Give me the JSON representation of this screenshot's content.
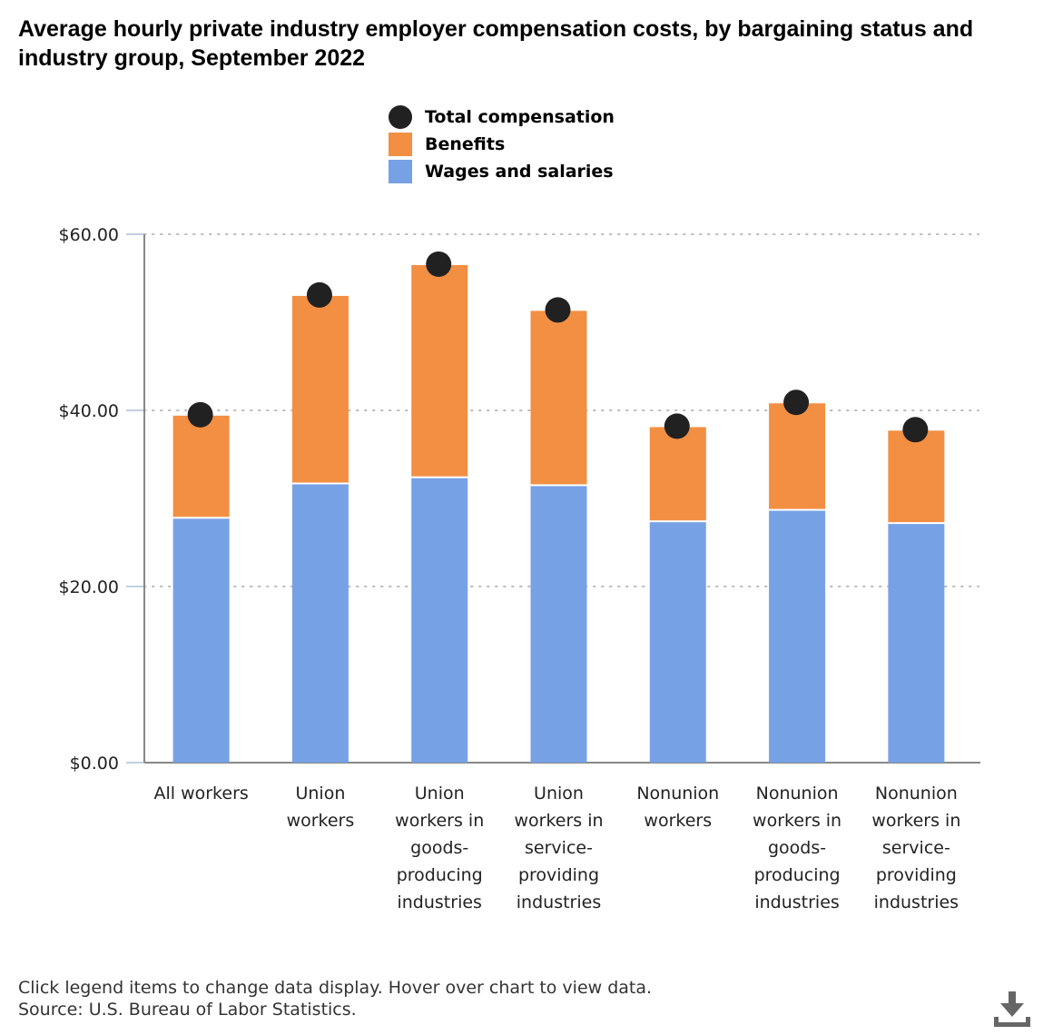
{
  "title": "Average hourly private industry employer compensation costs, by bargaining status and industry group, September 2022",
  "legend": [
    {
      "label": "Total compensation",
      "symbol": "circle",
      "color": "#212121"
    },
    {
      "label": "Benefits",
      "symbol": "square",
      "color": "#f28f43"
    },
    {
      "label": "Wages and salaries",
      "symbol": "square",
      "color": "#77a1e5"
    }
  ],
  "footer": {
    "line1": "Click legend items to change data display. Hover over chart to view data.",
    "line2": "Source: U.S. Bureau of Labor Statistics."
  },
  "download_icon": "download-icon",
  "chart_data": {
    "type": "bar",
    "stacked": true,
    "title": "Average hourly private industry employer compensation costs, by bargaining status and industry group, September 2022",
    "xlabel": "",
    "ylabel": "",
    "ylim": [
      0,
      60
    ],
    "yticks": [
      0,
      20,
      40,
      60
    ],
    "ytick_labels": [
      "$0.00",
      "$20.00",
      "$40.00",
      "$60.00"
    ],
    "grid": true,
    "legend_position": "top",
    "categories": [
      [
        "All workers"
      ],
      [
        "Union",
        "workers"
      ],
      [
        "Union",
        "workers in",
        "goods-",
        "producing",
        "industries"
      ],
      [
        "Union",
        "workers in",
        "service-",
        "providing",
        "industries"
      ],
      [
        "Nonunion",
        "workers"
      ],
      [
        "Nonunion",
        "workers in",
        "goods-",
        "producing",
        "industries"
      ],
      [
        "Nonunion",
        "workers in",
        "service-",
        "providing",
        "industries"
      ]
    ],
    "series": [
      {
        "name": "Wages and salaries",
        "type": "bar",
        "color": "#77a1e5",
        "values": [
          27.7,
          31.6,
          32.3,
          31.4,
          27.3,
          28.6,
          27.1
        ]
      },
      {
        "name": "Benefits",
        "type": "bar",
        "color": "#f28f43",
        "values": [
          11.7,
          21.4,
          24.2,
          19.9,
          10.8,
          12.2,
          10.6
        ]
      },
      {
        "name": "Total compensation",
        "type": "scatter",
        "color": "#212121",
        "values": [
          39.4,
          53.0,
          56.5,
          51.3,
          38.1,
          40.8,
          37.7
        ]
      }
    ]
  }
}
